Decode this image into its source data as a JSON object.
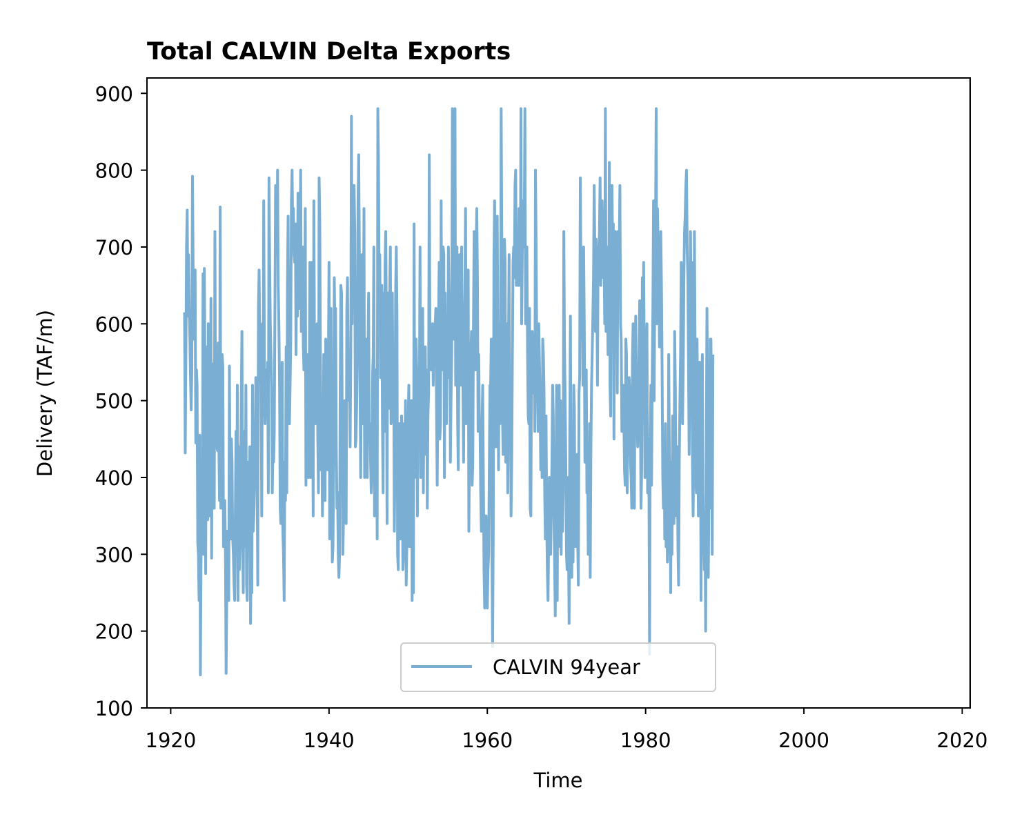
{
  "chart_data": {
    "type": "line",
    "title": "Total CALVIN Delta Exports",
    "xlabel": "Time",
    "ylabel": "Delivery (TAF/m)",
    "xlim": [
      1917,
      2021
    ],
    "ylim": [
      100,
      920
    ],
    "x_ticks": [
      "1920",
      "1940",
      "1960",
      "1980",
      "2000",
      "2020"
    ],
    "y_ticks": [
      "100",
      "200",
      "300",
      "400",
      "500",
      "600",
      "700",
      "800",
      "900"
    ],
    "legend_position": "lower-center",
    "grid": false,
    "series": [
      {
        "name": "CALVIN 94year",
        "color": "#7aaed3",
        "x_start": 1921.75,
        "x_step_years": 0.0833333,
        "values": [
          615,
          432,
          560,
          700,
          748,
          610,
          690,
          620,
          585,
          530,
          488,
          540,
          792,
          670,
          580,
          610,
          670,
          445,
          540,
          520,
          315,
          300,
          240,
          455,
          143,
          300,
          390,
          310,
          665,
          300,
          672,
          530,
          275,
          570,
          390,
          345,
          600,
          520,
          350,
          380,
          633,
          295,
          520,
          360,
          548,
          360,
          720,
          490,
          500,
          440,
          435,
          575,
          440,
          370,
          752,
          360,
          520,
          560,
          545,
          310,
          330,
          370,
          300,
          145,
          250,
          330,
          300,
          240,
          545,
          360,
          320,
          450,
          420,
          320,
          300,
          260,
          240,
          350,
          460,
          300,
          520,
          240,
          440,
          280,
          310,
          400,
          505,
          590,
          320,
          250,
          440,
          460,
          310,
          520,
          260,
          240,
          420,
          330,
          380,
          440,
          210,
          300,
          250,
          520,
          330,
          350,
          390,
          420,
          530,
          520,
          400,
          260,
          620,
          670,
          580,
          560,
          520,
          350,
          600,
          480,
          760,
          560,
          470,
          540,
          510,
          480,
          550,
          380,
          790,
          680,
          600,
          560,
          520,
          380,
          440,
          420,
          460,
          620,
          780,
          720,
          690,
          800,
          650,
          600,
          520,
          360,
          340,
          480,
          550,
          330,
          300,
          240,
          420,
          370,
          570,
          380,
          650,
          740,
          500,
          470,
          520,
          580,
          760,
          800,
          720,
          750,
          690,
          680,
          730,
          560,
          690,
          610,
          770,
          670,
          620,
          690,
          800,
          590,
          620,
          700,
          570,
          540,
          590,
          750,
          390,
          520,
          560,
          420,
          400,
          520,
          680,
          400,
          640,
          680,
          540,
          350,
          760,
          560,
          480,
          470,
          560,
          600,
          450,
          380,
          790,
          730,
          560,
          410,
          460,
          350,
          420,
          560,
          550,
          370,
          580,
          460,
          520,
          410,
          540,
          680,
          320,
          510,
          620,
          380,
          290,
          310,
          420,
          660,
          580,
          620,
          440,
          360,
          380,
          300,
          270,
          300,
          520,
          650,
          640,
          480,
          300,
          350,
          420,
          500,
          480,
          340,
          620,
          660,
          540,
          500,
          530,
          440,
          560,
          870,
          600,
          750,
          700,
          780,
          720,
          440,
          450,
          500,
          570,
          760,
          820,
          690,
          520,
          400,
          560,
          690,
          470,
          560,
          750,
          400,
          520,
          580,
          550,
          400,
          560,
          640,
          450,
          470,
          420,
          380,
          400,
          530,
          560,
          700,
          350,
          470,
          540,
          490,
          320,
          880,
          810,
          640,
          690,
          530,
          600,
          650,
          470,
          380,
          640,
          460,
          680,
          720,
          590,
          340,
          640,
          520,
          490,
          640,
          700,
          470,
          480,
          640,
          490,
          560,
          330,
          420,
          640,
          700,
          610,
          300,
          280,
          460,
          470,
          320,
          350,
          480,
          420,
          280,
          300,
          470,
          420,
          500,
          260,
          310,
          340,
          470,
          520,
          310,
          410,
          360,
          500,
          240,
          420,
          250,
          730,
          400,
          540,
          580,
          540,
          350,
          480,
          440,
          500,
          700,
          400,
          580,
          590,
          620,
          380,
          520,
          560,
          570,
          430,
          540,
          360,
          480,
          510,
          820,
          570,
          600,
          540,
          550,
          600,
          520,
          590,
          550,
          600,
          620,
          490,
          390,
          510,
          600,
          680,
          450,
          470,
          760,
          540,
          560,
          700,
          690,
          400,
          640,
          520,
          470,
          590,
          530,
          700,
          640,
          600,
          420,
          500,
          560,
          880,
          700,
          580,
          640,
          880,
          520,
          640,
          700,
          470,
          410,
          560,
          690,
          520,
          630,
          700,
          560,
          520,
          420,
          580,
          640,
          750,
          470,
          560,
          520,
          670,
          330,
          440,
          460,
          560,
          590,
          390,
          420,
          600,
          720,
          630,
          540,
          700,
          750,
          660,
          460,
          560,
          470,
          460,
          380,
          330,
          470,
          520,
          400,
          280,
          230,
          350,
          350,
          340,
          230,
          280,
          300,
          410,
          520,
          520,
          580,
          300,
          180,
          330,
          680,
          760,
          620,
          440,
          560,
          740,
          580,
          410,
          600,
          470,
          540,
          880,
          700,
          480,
          430,
          560,
          710,
          680,
          420,
          600,
          600,
          380,
          560,
          690,
          430,
          510,
          350,
          420,
          560,
          680,
          700,
          660,
          780,
          800,
          650,
          720,
          700,
          650,
          750,
          700,
          650,
          880,
          600,
          690,
          760,
          700,
          720,
          880,
          600,
          680,
          700,
          560,
          480,
          470,
          620,
          360,
          350,
          540,
          590,
          560,
          510,
          560,
          460,
          800,
          700,
          560,
          520,
          460,
          600,
          550,
          500,
          410,
          490,
          400,
          580,
          560,
          510,
          380,
          320,
          480,
          350,
          280,
          240,
          320,
          400,
          340,
          300,
          360,
          420,
          520,
          480,
          350,
          290,
          220,
          350,
          520,
          240,
          460,
          310,
          520,
          400,
          500,
          300,
          460,
          330,
          380,
          720,
          570,
          500,
          420,
          300,
          280,
          400,
          320,
          210,
          460,
          610,
          340,
          270,
          410,
          290,
          520,
          490,
          320,
          310,
          390,
          430,
          320,
          260,
          510,
          530,
          790,
          660,
          580,
          640,
          520,
          700,
          600,
          420,
          510,
          540,
          380,
          420,
          300,
          330,
          470,
          270,
          430,
          520,
          560,
          610,
          660,
          780,
          700,
          590,
          710,
          650,
          520,
          700,
          680,
          720,
          790,
          650,
          700,
          760,
          720,
          660,
          690,
          600,
          880,
          590,
          700,
          650,
          560,
          620,
          810,
          520,
          480,
          720,
          780,
          690,
          730,
          450,
          700,
          720,
          640,
          680,
          510,
          720,
          680,
          690,
          780,
          600,
          580,
          460,
          470,
          520,
          480,
          410,
          390,
          580,
          560,
          380,
          470,
          430,
          530,
          510,
          420,
          400,
          360,
          550,
          600,
          380,
          360,
          570,
          610,
          500,
          480,
          440,
          500,
          560,
          630,
          490,
          360,
          410,
          660,
          520,
          680,
          550,
          400,
          450,
          540,
          600,
          380,
          450,
          400,
          170,
          450,
          520,
          390,
          530,
          620,
          760,
          500,
          680,
          720,
          880,
          600,
          750,
          700,
          680,
          570,
          660,
          720,
          650,
          540,
          400,
          360,
          450,
          320,
          470,
          310,
          380,
          290,
          320,
          560,
          430,
          380,
          250,
          420,
          300,
          480,
          380,
          340,
          590,
          520,
          400,
          350,
          440,
          310,
          260,
          420,
          500,
          560,
          680,
          600,
          470,
          540,
          660,
          720,
          740,
          780,
          800,
          700,
          660,
          550,
          430,
          520,
          720,
          620,
          680,
          420,
          350,
          440,
          720,
          560,
          400,
          380,
          580,
          470,
          350,
          440,
          550,
          530,
          240,
          490,
          560,
          380,
          320,
          280,
          350,
          200,
          440,
          620,
          500,
          270,
          380,
          360,
          580,
          580,
          490,
          300,
          560
        ]
      }
    ]
  }
}
